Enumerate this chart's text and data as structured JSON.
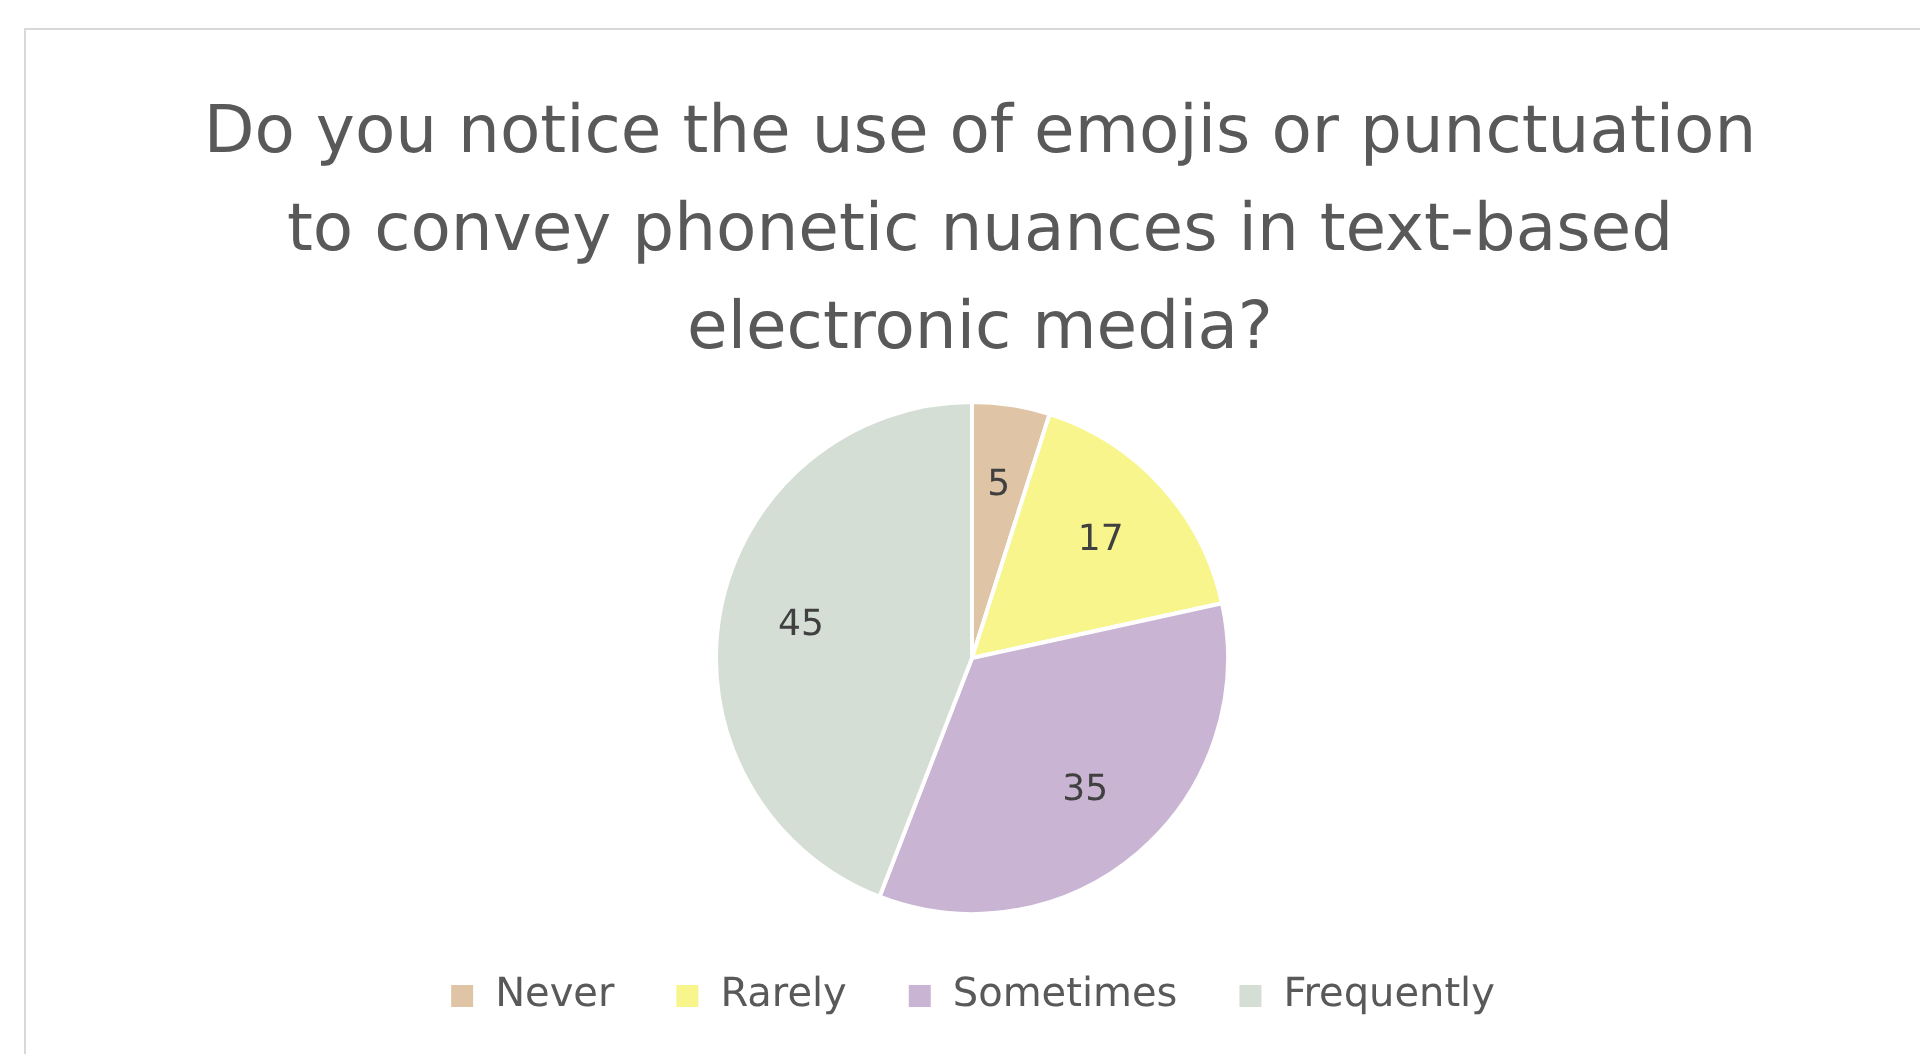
{
  "chart_data": {
    "type": "pie",
    "title": "Do you notice the use of emojis or punctuation to convey phonetic nuances in text-based electronic media?",
    "categories": [
      "Never",
      "Rarely",
      "Sometimes",
      "Frequently"
    ],
    "values": [
      5,
      17,
      35,
      45
    ],
    "colors": [
      "#dfc5a5",
      "#f7f58c",
      "#cab4d4",
      "#d4ded4"
    ],
    "data_labels": true,
    "legend": "bottom"
  }
}
